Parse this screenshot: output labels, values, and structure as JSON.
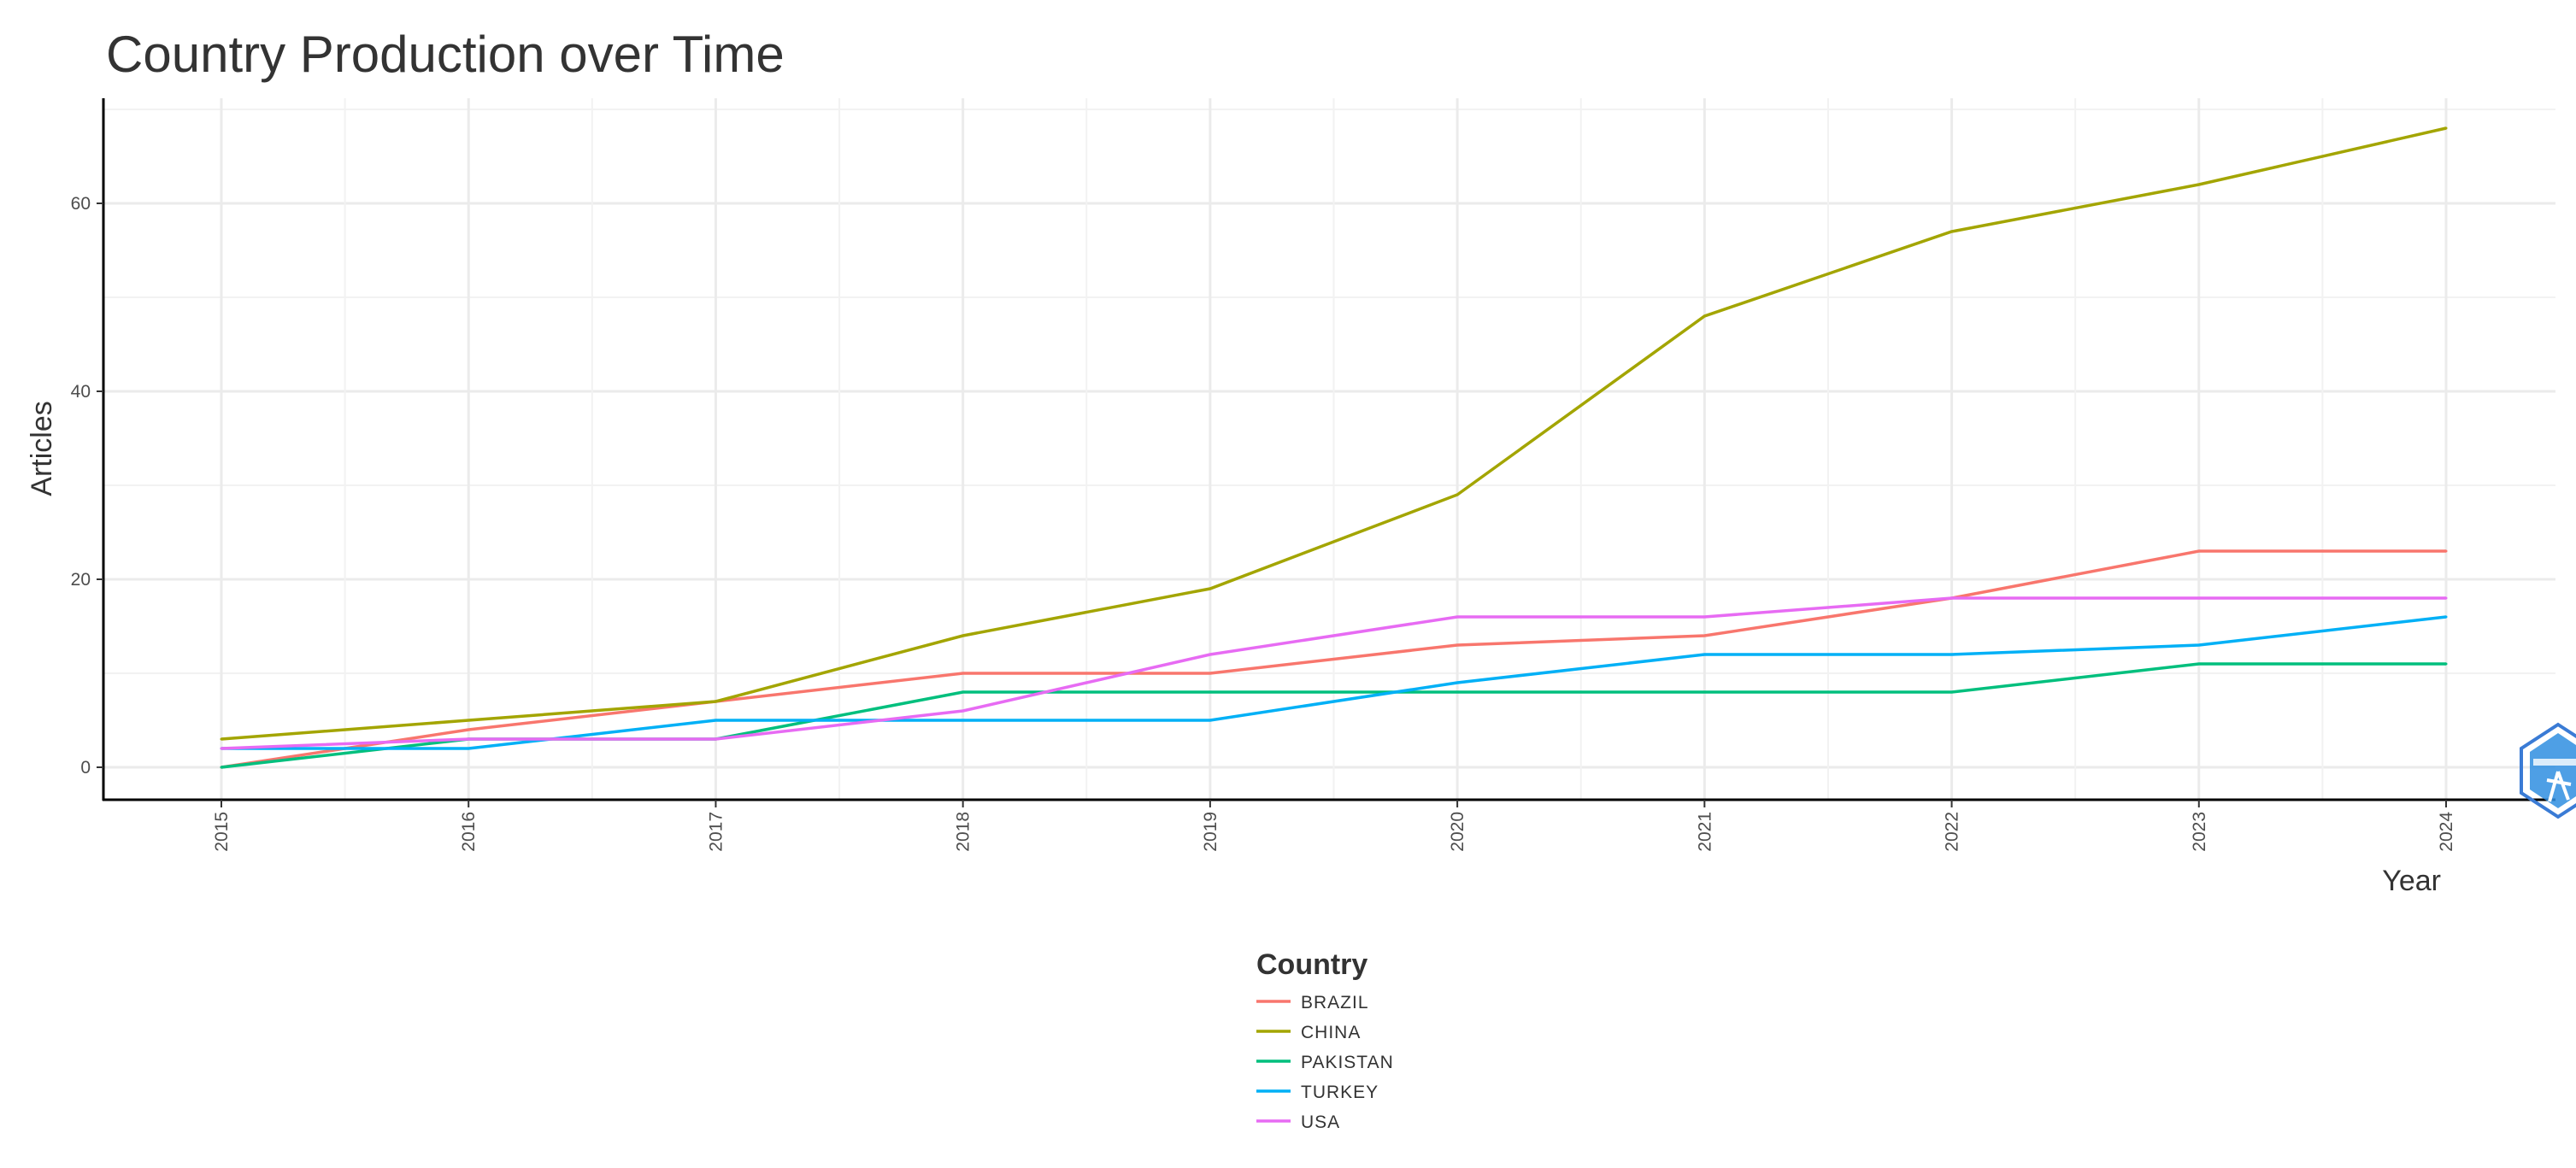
{
  "chart_data": {
    "type": "line",
    "title": "Country Production over Time",
    "xlabel": "Year",
    "ylabel": "Articles",
    "x": [
      2015,
      2016,
      2017,
      2018,
      2019,
      2020,
      2021,
      2022,
      2023,
      2024
    ],
    "x_tick_labels": [
      "2015",
      "2016",
      "2017",
      "2018",
      "2019",
      "2020",
      "2021",
      "2022",
      "2023",
      "2024"
    ],
    "y_ticks": [
      0,
      20,
      40,
      60
    ],
    "y_tick_labels": [
      "0",
      "20",
      "40",
      "60"
    ],
    "ylim": [
      0,
      70
    ],
    "grid": true,
    "legend": {
      "title": "Country",
      "placement": "bottom"
    },
    "series": [
      {
        "name": "BRAZIL",
        "color": "#F8766D",
        "values": [
          0,
          4,
          7,
          10,
          10,
          13,
          14,
          18,
          23,
          23
        ]
      },
      {
        "name": "CHINA",
        "color": "#A3A500",
        "values": [
          3,
          5,
          7,
          14,
          19,
          29,
          48,
          57,
          62,
          68
        ]
      },
      {
        "name": "PAKISTAN",
        "color": "#00BF7D",
        "values": [
          0,
          3,
          3,
          8,
          8,
          8,
          8,
          8,
          11,
          11
        ]
      },
      {
        "name": "TURKEY",
        "color": "#00B0F6",
        "values": [
          2,
          2,
          5,
          5,
          5,
          9,
          12,
          12,
          13,
          16
        ]
      },
      {
        "name": "USA",
        "color": "#E76BF3",
        "values": [
          2,
          3,
          3,
          6,
          12,
          16,
          16,
          18,
          18,
          18
        ]
      }
    ]
  },
  "watermark": {
    "icon": "bibliometrix-logo-icon",
    "color": "#3a7bd5"
  }
}
